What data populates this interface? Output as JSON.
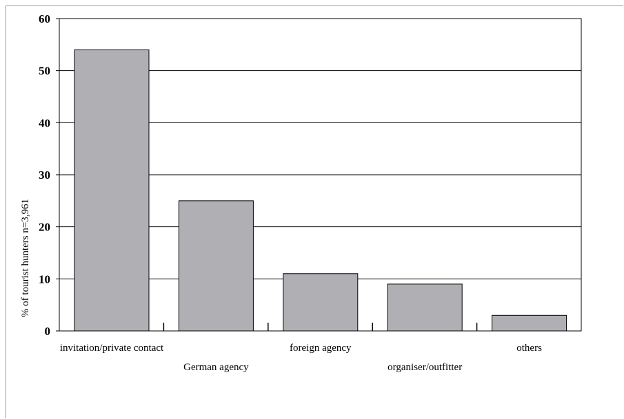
{
  "chart_data": {
    "type": "bar",
    "title": "",
    "xlabel": "",
    "ylabel": "% of tourist hunters n=3,961",
    "categories": [
      "invitation/private contact",
      "German agency",
      "foreign agency",
      "organiser/outfitter",
      "others"
    ],
    "values": [
      54,
      25,
      11,
      9,
      3
    ],
    "ylim": [
      0,
      60
    ],
    "yticks": [
      0,
      10,
      20,
      30,
      40,
      50,
      60
    ],
    "grid": true,
    "legend": "none",
    "colors": {
      "bar_fill": "#b0b0b4",
      "bar_stroke": "#000000",
      "grid": "#000000"
    }
  }
}
